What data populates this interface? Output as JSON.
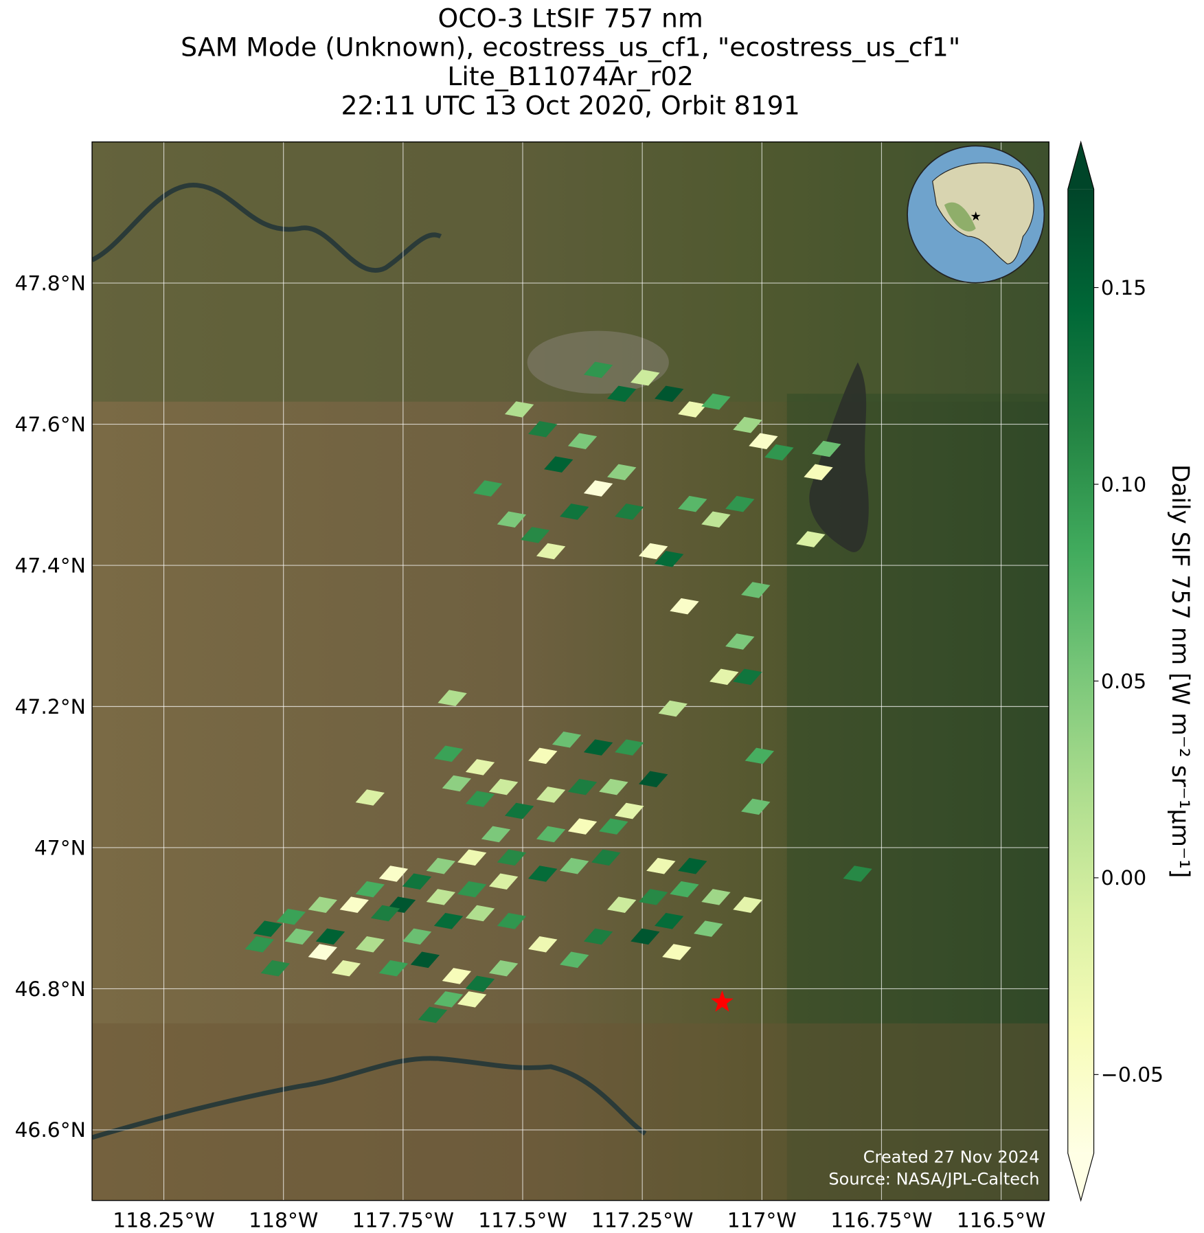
{
  "chart_data": {
    "type": "map",
    "title": [
      "OCO-3 LtSIF 757 nm",
      "SAM Mode (Unknown), ecostress_us_cf1, \"ecostress_us_cf1\"",
      "Lite_B11074Ar_r02",
      "22:11 UTC 13 Oct 2020, Orbit 8191"
    ],
    "footer": [
      "Created 27 Nov 2024",
      "Source: NASA/JPL-Caltech"
    ],
    "colorbar_label": "Daily SIF 757 nm [W m⁻² sr⁻¹μm⁻¹]",
    "xlim": [
      -118.4,
      -116.4
    ],
    "ylim": [
      46.5,
      48.0
    ],
    "grid": true,
    "xticks": [
      {
        "value": -118.25,
        "label": "118.25°W"
      },
      {
        "value": -118,
        "label": "118°W"
      },
      {
        "value": -117.75,
        "label": "117.75°W"
      },
      {
        "value": -117.5,
        "label": "117.5°W"
      },
      {
        "value": -117.25,
        "label": "117.25°W"
      },
      {
        "value": -117,
        "label": "117°W"
      },
      {
        "value": -116.75,
        "label": "116.75°W"
      },
      {
        "value": -116.5,
        "label": "116.5°W"
      }
    ],
    "yticks": [
      {
        "value": 46.6,
        "label": "46.6°N"
      },
      {
        "value": 46.8,
        "label": "46.8°N"
      },
      {
        "value": 47,
        "label": "47°N"
      },
      {
        "value": 47.2,
        "label": "47.2°N"
      },
      {
        "value": 47.4,
        "label": "47.4°N"
      },
      {
        "value": 47.6,
        "label": "47.6°N"
      },
      {
        "value": 47.8,
        "label": "47.8°N"
      }
    ],
    "clim": [
      -0.07,
      0.175
    ],
    "cticks": [
      {
        "value": -0.05,
        "label": "−0.05"
      },
      {
        "value": 0,
        "label": "0.00"
      },
      0.05,
      {
        "value": 0.1,
        "label": "0.10"
      },
      0.15
    ],
    "colormap": [
      "#ffffe5",
      "#f7fcb9",
      "#d9f0a3",
      "#addd8e",
      "#78c679",
      "#41ab5d",
      "#238443",
      "#006837",
      "#004529"
    ],
    "target": {
      "lon": -117.083,
      "lat": 46.781,
      "color": "#ff0000"
    },
    "x": [
      -117.507,
      -117.458,
      -117.425,
      -117.375,
      -117.342,
      -117.293,
      -117.244,
      -117.194,
      -117.145,
      -117.096,
      -117.03,
      -116.997,
      -116.964,
      -116.865,
      -116.882,
      -117.573,
      -117.523,
      -117.474,
      -117.441,
      -117.392,
      -117.342,
      -117.293,
      -117.277,
      -117.227,
      -117.194,
      -117.145,
      -117.096,
      -117.046,
      -117.013,
      -117.162,
      -117.046,
      -117.079,
      -117.03,
      -117.186,
      -117.647,
      -117.005,
      -117.013,
      -116.8,
      -116.898,
      -117.819,
      -117.655,
      -117.589,
      -117.638,
      -117.589,
      -117.54,
      -117.458,
      -117.408,
      -117.342,
      -117.277,
      -117.227,
      -117.31,
      -117.375,
      -117.441,
      -117.507,
      -117.556,
      -117.606,
      -117.523,
      -117.441,
      -117.375,
      -117.31,
      -117.277,
      -117.671,
      -117.721,
      -117.77,
      -117.819,
      -117.754,
      -117.671,
      -117.606,
      -117.54,
      -117.458,
      -117.392,
      -117.326,
      -117.211,
      -117.145,
      -117.162,
      -117.096,
      -117.03,
      -117.227,
      -117.293,
      -117.194,
      -117.112,
      -117.244,
      -117.178,
      -117.342,
      -117.392,
      -117.458,
      -117.523,
      -117.589,
      -117.655,
      -117.721,
      -117.787,
      -117.852,
      -117.918,
      -117.984,
      -118.033,
      -118.05,
      -117.967,
      -117.902,
      -117.819,
      -117.869,
      -117.77,
      -117.704,
      -117.638,
      -117.589,
      -117.54,
      -117.655,
      -117.688,
      -117.606,
      -118.017,
      -117.918
    ],
    "y": [
      47.621,
      47.593,
      47.543,
      47.576,
      47.677,
      47.643,
      47.666,
      47.643,
      47.621,
      47.632,
      47.599,
      47.576,
      47.56,
      47.565,
      47.532,
      47.509,
      47.465,
      47.443,
      47.42,
      47.476,
      47.509,
      47.532,
      47.476,
      47.42,
      47.409,
      47.487,
      47.465,
      47.487,
      47.365,
      47.342,
      47.292,
      47.242,
      47.242,
      47.197,
      47.212,
      47.13,
      47.058,
      46.963,
      47.437,
      47.071,
      47.133,
      47.114,
      47.091,
      47.069,
      47.086,
      47.13,
      47.153,
      47.142,
      47.142,
      47.097,
      47.086,
      47.086,
      47.075,
      47.052,
      47.019,
      46.986,
      46.986,
      47.019,
      47.03,
      47.03,
      47.052,
      46.974,
      46.952,
      46.963,
      46.941,
      46.919,
      46.93,
      46.941,
      46.952,
      46.963,
      46.974,
      46.986,
      46.974,
      46.974,
      46.941,
      46.93,
      46.919,
      46.93,
      46.919,
      46.896,
      46.885,
      46.874,
      46.852,
      46.874,
      46.841,
      46.863,
      46.896,
      46.907,
      46.896,
      46.874,
      46.907,
      46.919,
      46.919,
      46.902,
      46.885,
      46.863,
      46.874,
      46.874,
      46.863,
      46.829,
      46.829,
      46.841,
      46.818,
      46.807,
      46.829,
      46.785,
      46.763,
      46.785,
      46.829,
      46.852
    ],
    "values": [
      0.02,
      0.12,
      0.15,
      0.05,
      0.1,
      0.14,
      0.0,
      0.16,
      -0.03,
      0.08,
      0.03,
      -0.05,
      0.1,
      0.06,
      -0.04,
      0.09,
      0.05,
      0.11,
      -0.02,
      0.13,
      -0.06,
      0.04,
      0.12,
      -0.05,
      0.14,
      0.07,
      0.01,
      0.1,
      0.06,
      -0.05,
      0.05,
      -0.02,
      0.13,
      0.01,
      0.02,
      0.08,
      0.06,
      0.11,
      -0.01,
      -0.01,
      0.09,
      -0.02,
      0.04,
      0.1,
      0.0,
      -0.04,
      0.06,
      0.15,
      0.1,
      0.16,
      0.03,
      0.12,
      0.0,
      0.13,
      0.05,
      -0.03,
      0.11,
      0.07,
      -0.04,
      0.09,
      -0.02,
      0.04,
      0.13,
      -0.05,
      0.08,
      0.16,
      0.01,
      0.1,
      -0.01,
      0.14,
      0.05,
      0.12,
      -0.03,
      0.15,
      0.08,
      0.03,
      -0.02,
      0.11,
      0.0,
      0.14,
      0.05,
      0.16,
      -0.04,
      0.12,
      0.07,
      -0.03,
      0.1,
      0.02,
      0.14,
      0.06,
      0.12,
      -0.05,
      0.03,
      0.09,
      0.14,
      0.1,
      0.05,
      0.15,
      0.02,
      -0.02,
      0.09,
      0.16,
      -0.04,
      0.13,
      0.04,
      0.07,
      0.12,
      -0.03,
      0.11,
      -0.06
    ]
  }
}
